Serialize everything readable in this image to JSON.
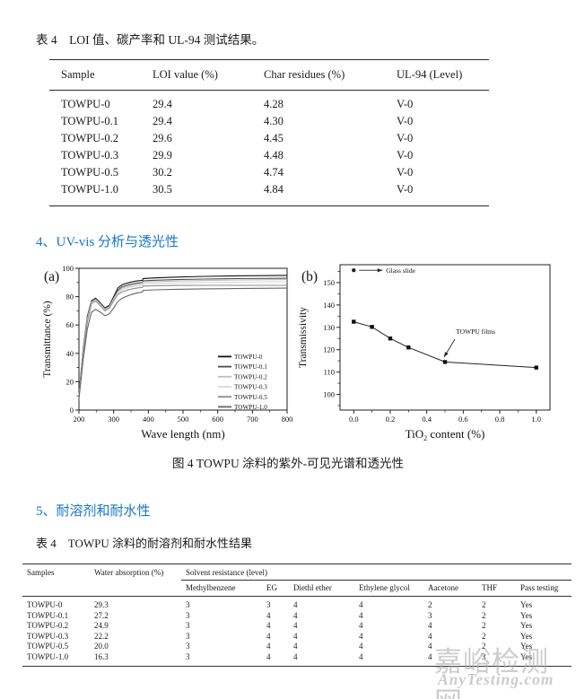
{
  "page": {
    "accent_blue": "#1776c8",
    "watermark": {
      "line1": "嘉峪检测网",
      "line2": "AnyTesting.com",
      "color": "#c4c4c4"
    }
  },
  "table1": {
    "title": "表 4　LOI 值、碳产率和 UL-94 测试结果。",
    "columns": [
      "Sample",
      "LOI value (%)",
      "Char residues (%)",
      "UL-94 (Level)"
    ],
    "rows": [
      [
        "TOWPU-0",
        "29.4",
        "4.28",
        "V-0"
      ],
      [
        "TOWPU-0.1",
        "29.4",
        "4.30",
        "V-0"
      ],
      [
        "TOWPU-0.2",
        "29.6",
        "4.45",
        "V-0"
      ],
      [
        "TOWPU-0.3",
        "29.9",
        "4.48",
        "V-0"
      ],
      [
        "TOWPU-0.5",
        "30.2",
        "4.74",
        "V-0"
      ],
      [
        "TOWPU-1.0",
        "30.5",
        "4.84",
        "V-0"
      ]
    ]
  },
  "section4": {
    "heading": "4、UV-vis 分析与透光性"
  },
  "figure": {
    "caption": "图 4 TOWPU 涂料的紫外-可见光谱和透光性"
  },
  "section5": {
    "heading": "5、耐溶剂和耐水性"
  },
  "table2": {
    "title": "表 4　TOWPU 涂料的耐溶剂和耐水性结果",
    "group_header": "Solvent resistance (level)",
    "columns": [
      "Samples",
      "Water absorption (%)",
      "Methylbenzene",
      "EG",
      "Diethl ether",
      "Ethylene glycol",
      "Aacetone",
      "THF",
      "Pass testing"
    ],
    "rows": [
      [
        "TOWPU-0",
        "29.3",
        "3",
        "3",
        "4",
        "4",
        "2",
        "2",
        "Yes"
      ],
      [
        "TOWPU-0.1",
        "27.2",
        "3",
        "4",
        "4",
        "4",
        "3",
        "2",
        "Yes"
      ],
      [
        "TOWPU-0.2",
        "24.9",
        "3",
        "4",
        "4",
        "4",
        "4",
        "2",
        "Yes"
      ],
      [
        "TOWPU-0.3",
        "22.2",
        "3",
        "4",
        "4",
        "4",
        "4",
        "2",
        "Yes"
      ],
      [
        "TOWPU-0.5",
        "20.0",
        "3",
        "4",
        "4",
        "4",
        "4",
        "2",
        "Yes"
      ],
      [
        "TOWPU-1.0",
        "16.3",
        "3",
        "4",
        "4",
        "4",
        "4",
        "3",
        "Yes"
      ]
    ]
  },
  "chart_data": [
    {
      "id": "a",
      "type": "line",
      "panel_label": "(a)",
      "xlabel": "Wave length (nm)",
      "ylabel": "Transmittance (%)",
      "xlim": [
        200,
        800
      ],
      "ylim": [
        0,
        100
      ],
      "xticks": [
        200,
        300,
        400,
        500,
        600,
        700,
        800
      ],
      "xtick_labels": [
        "200",
        "300",
        "400",
        "500",
        "600",
        "700",
        "800"
      ],
      "xticks_minor": [
        250,
        350,
        450,
        550,
        650,
        750
      ],
      "yticks": [
        0,
        20,
        40,
        60,
        80,
        100
      ],
      "ytick_labels": [
        "0",
        "20",
        "40",
        "60",
        "80",
        "100"
      ],
      "yticks_minor": [
        10,
        30,
        50,
        70,
        90
      ],
      "legend_position": "lower right",
      "x": [
        200,
        212,
        224,
        236,
        248,
        262,
        275,
        288,
        300,
        312,
        325,
        345,
        365,
        383,
        385,
        420,
        480,
        560,
        650,
        800
      ],
      "series": [
        {
          "name": "TOWPU-0",
          "color": "#111111",
          "y": [
            11,
            42,
            66,
            77,
            79,
            75.5,
            72,
            74,
            80,
            86,
            88.5,
            90,
            91,
            91.5,
            92.8,
            93.2,
            93.8,
            94.3,
            94.7,
            95
          ]
        },
        {
          "name": "TOWPU-0.1",
          "color": "#4d4d4d",
          "y": [
            10,
            41,
            65,
            76.5,
            78.5,
            75,
            71.5,
            73.5,
            79,
            84.5,
            87,
            88.5,
            89.5,
            90,
            91.2,
            91.6,
            92,
            92.4,
            92.7,
            93
          ]
        },
        {
          "name": "TOWPU-0.2",
          "color": "#bfbfbf",
          "y": [
            10,
            40,
            64,
            76,
            78,
            74.5,
            71,
            73,
            78.5,
            83.5,
            86,
            87.5,
            88.5,
            89,
            90.2,
            90.6,
            91,
            91.4,
            91.7,
            92
          ]
        },
        {
          "name": "TOWPU-0.3",
          "color": "#d8d8d8",
          "y": [
            9,
            39,
            63,
            75.5,
            77.5,
            74,
            70.5,
            72.5,
            78,
            82.5,
            85,
            86.5,
            87.5,
            88,
            89,
            89.3,
            89.7,
            90,
            90.2,
            90.5
          ]
        },
        {
          "name": "TOWPU-0.5",
          "color": "#8c8c8c",
          "y": [
            9,
            38,
            62,
            75,
            77,
            73.5,
            70,
            72,
            77,
            81.5,
            83.5,
            85,
            86,
            86.5,
            87.5,
            87.7,
            87.9,
            88,
            88,
            88
          ]
        },
        {
          "name": "TOWPU-1.0",
          "color": "#666666",
          "y": [
            8,
            35,
            57,
            69,
            71,
            69,
            66.5,
            68,
            72,
            76.5,
            79,
            81,
            82.5,
            83.3,
            84.5,
            84.8,
            85.2,
            85.5,
            85.7,
            86
          ]
        }
      ]
    },
    {
      "id": "b",
      "type": "scatter-line",
      "panel_label": "(b)",
      "xlabel": "TiO2 content (%)",
      "ylabel": "Transmissivity",
      "xlim": [
        -0.075,
        1.075
      ],
      "ylim": [
        93,
        158
      ],
      "xticks": [
        0.0,
        0.2,
        0.4,
        0.6,
        0.8,
        1.0
      ],
      "xtick_labels": [
        "0.0",
        "0.2",
        "0.4",
        "0.6",
        "0.8",
        "1.0"
      ],
      "xticks_minor": [
        0.1,
        0.3,
        0.5,
        0.7,
        0.9
      ],
      "yticks": [
        100,
        110,
        120,
        130,
        140,
        150
      ],
      "ytick_labels": [
        "100",
        "110",
        "120",
        "130",
        "140",
        "150"
      ],
      "yticks_minor": [
        95,
        105,
        115,
        125,
        135,
        145,
        155
      ],
      "points": {
        "x": [
          0.0,
          0.1,
          0.2,
          0.3,
          0.5,
          1.0
        ],
        "y": [
          132.5,
          130.2,
          125,
          121,
          114.5,
          112
        ]
      },
      "glass_slide": {
        "x": 0.0,
        "y": 155.5,
        "label": "Glass slide"
      },
      "films_label": {
        "text": "TOWPU films",
        "x": 0.56,
        "y": 127.2,
        "arrow": {
          "x1": 0.554,
          "y1": 124.7,
          "x2": 0.495,
          "y2": 116.7
        }
      }
    }
  ]
}
